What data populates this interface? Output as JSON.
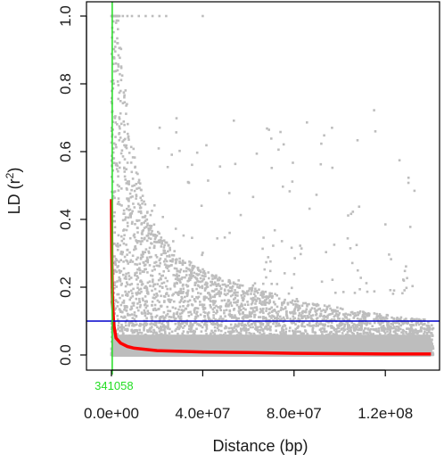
{
  "chart_data": {
    "type": "scatter",
    "xlabel": "Distance (bp)",
    "ylabel": "LD (r",
    "ylabel_superscript": "2",
    "ylabel_close": ")",
    "xlim": [
      0,
      140000000
    ],
    "ylim": [
      0,
      1.0
    ],
    "x_ticks": [
      0,
      40000000,
      80000000,
      120000000
    ],
    "x_tick_labels": [
      "0.0e+00",
      "4.0e+07",
      "8.0e+07",
      "1.2e+08"
    ],
    "y_ticks": [
      0.0,
      0.2,
      0.4,
      0.6,
      0.8,
      1.0
    ],
    "y_tick_labels": [
      "0.0",
      "0.2",
      "0.4",
      "0.6",
      "0.8",
      "1.0"
    ],
    "grid": false,
    "point_color": "#bdbdbd",
    "decay_curve": {
      "color": "#ff0000",
      "x": [
        0,
        170000,
        341058,
        500000,
        1000000,
        2000000,
        4000000,
        7000000,
        10000000,
        20000000,
        40000000,
        60000000,
        80000000,
        100000000,
        120000000,
        140000000
      ],
      "y": [
        0.46,
        0.3,
        0.2,
        0.15,
        0.09,
        0.05,
        0.035,
        0.025,
        0.02,
        0.013,
        0.009,
        0.007,
        0.005,
        0.004,
        0.003,
        0.003
      ]
    },
    "threshold_line": {
      "value": 0.1,
      "color": "#0000cc"
    },
    "decay_distance_line": {
      "value": 341058,
      "label": "341058",
      "color": "#22dd22"
    }
  }
}
